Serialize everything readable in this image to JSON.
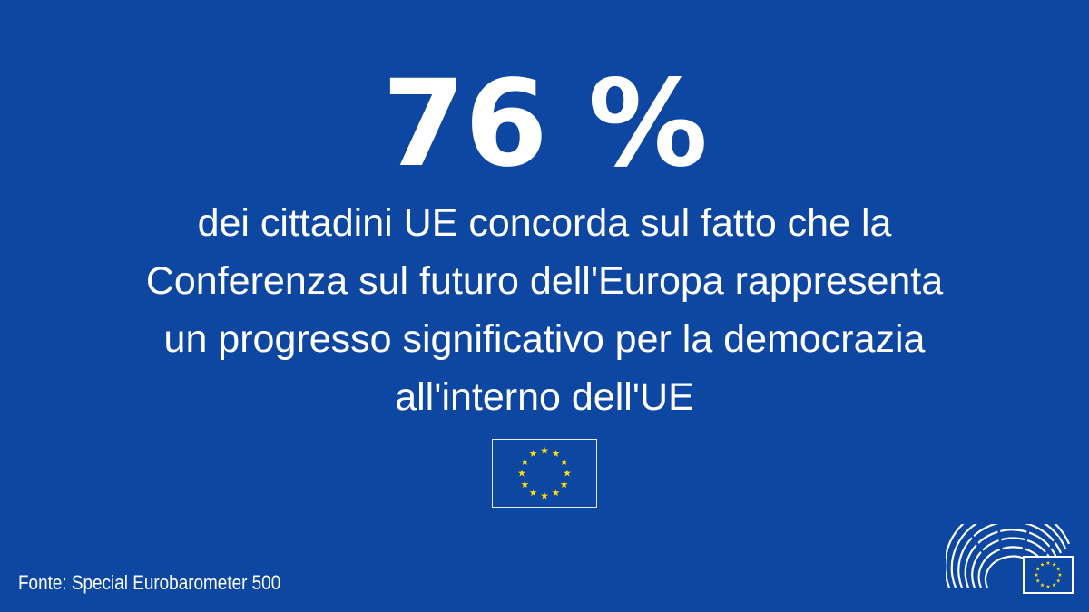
{
  "infographic": {
    "headline": "76 %",
    "lines": [
      "dei cittadini UE concorda sul fatto che la",
      "Conferenza sul futuro dell'Europa rappresenta",
      "un progresso significativo per la democrazia",
      "all'interno dell'UE"
    ],
    "source": "Fonte: Special Eurobarometer 500"
  },
  "icons": {
    "flag": "eu-flag-icon",
    "logo": "european-parliament-logo-icon"
  },
  "colors": {
    "background": "#0e47a1",
    "text": "#ffffff",
    "star": "#ffdd00",
    "flag_blue": "#0e47a1"
  }
}
